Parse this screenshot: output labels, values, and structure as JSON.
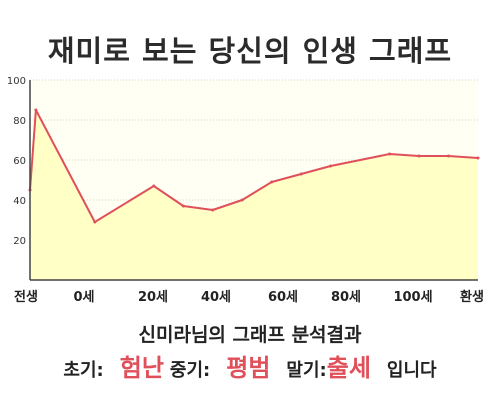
{
  "header": {
    "title": "재미로 보는 당신의 인생 그래프"
  },
  "chart_data": {
    "type": "area",
    "title": "재미로 보는 당신의 인생 그래프",
    "xlabel": "",
    "ylabel": "",
    "ylim": [
      0,
      100
    ],
    "yticks": [
      "20",
      "40",
      "60",
      "80",
      "100"
    ],
    "xticks": [
      "전생",
      "0세",
      "20세",
      "40세",
      "60세",
      "80세",
      "100세",
      "환생"
    ],
    "x": [
      -1,
      0,
      10,
      20,
      25,
      30,
      35,
      40,
      45,
      50,
      60,
      65,
      70,
      75
    ],
    "values": [
      45,
      85,
      29,
      47,
      37,
      35,
      40,
      49,
      53,
      57,
      63,
      62,
      62,
      61
    ],
    "grid": true,
    "colors": {
      "line": "#e0505a",
      "fill": "#ffffc6",
      "plot_bg": "#fffff4"
    }
  },
  "summary": {
    "title": "신미라님의 그래프 분석결과",
    "early_label": "초기:",
    "early_value": "험난",
    "middle_label": "중기:",
    "middle_value": "평범",
    "late_label": "말기:",
    "late_value": "출세",
    "suffix": "입니다"
  }
}
